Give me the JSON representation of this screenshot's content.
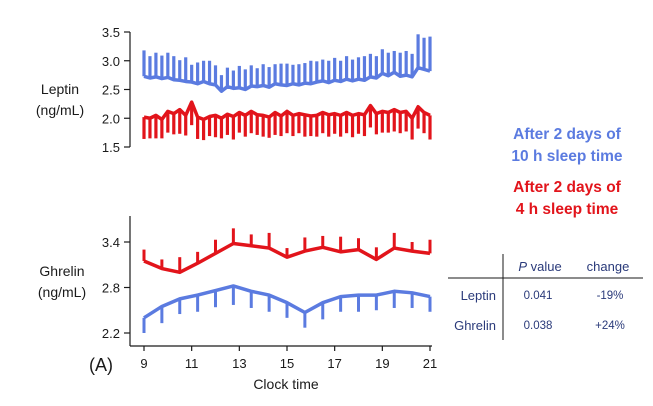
{
  "colors": {
    "blue": "#5B7BE0",
    "red": "#E2141B",
    "ink": "#1a1a1a",
    "tableInk": "#2a3a7a"
  },
  "figure_label": "(A)",
  "chart_data": [
    {
      "type": "line",
      "name": "leptin",
      "ylabel": [
        "Leptin",
        "(ng/mL)"
      ],
      "ylim": [
        1.5,
        3.5
      ],
      "yticks": [
        "3.5",
        "3.0",
        "2.5",
        "2.0",
        "1.5"
      ],
      "ytickValues": [
        3.5,
        3.0,
        2.5,
        2.0,
        1.5
      ],
      "errorDirection": "up/down",
      "series": [
        {
          "name": "After 2 days of 10 h sleep time",
          "color": "blue",
          "x": [
            9.0,
            9.25,
            9.5,
            9.75,
            10.0,
            10.25,
            10.5,
            10.75,
            11.0,
            11.25,
            11.5,
            11.75,
            12.0,
            12.25,
            12.5,
            12.75,
            13.0,
            13.25,
            13.5,
            13.75,
            14.0,
            14.25,
            14.5,
            14.75,
            15.0,
            15.25,
            15.5,
            15.75,
            16.0,
            16.25,
            16.5,
            16.75,
            17.0,
            17.25,
            17.5,
            17.75,
            18.0,
            18.25,
            18.5,
            18.75,
            19.0,
            19.25,
            19.5,
            19.75,
            20.0,
            20.25,
            20.5,
            20.75,
            21.0
          ],
          "values": [
            2.73,
            2.7,
            2.72,
            2.69,
            2.71,
            2.67,
            2.66,
            2.64,
            2.63,
            2.6,
            2.64,
            2.6,
            2.58,
            2.47,
            2.55,
            2.52,
            2.53,
            2.5,
            2.56,
            2.55,
            2.57,
            2.54,
            2.6,
            2.58,
            2.57,
            2.6,
            2.58,
            2.61,
            2.6,
            2.63,
            2.65,
            2.62,
            2.66,
            2.64,
            2.68,
            2.65,
            2.68,
            2.66,
            2.72,
            2.7,
            2.78,
            2.74,
            2.8,
            2.73,
            2.75,
            2.72,
            2.88,
            2.85,
            2.82
          ],
          "errors": [
            0.45,
            0.38,
            0.42,
            0.4,
            0.43,
            0.41,
            0.35,
            0.42,
            0.3,
            0.37,
            0.36,
            0.4,
            0.34,
            0.28,
            0.33,
            0.31,
            0.38,
            0.35,
            0.36,
            0.32,
            0.37,
            0.35,
            0.34,
            0.37,
            0.38,
            0.33,
            0.36,
            0.35,
            0.4,
            0.36,
            0.37,
            0.38,
            0.39,
            0.36,
            0.4,
            0.37,
            0.38,
            0.42,
            0.4,
            0.38,
            0.42,
            0.4,
            0.37,
            0.41,
            0.42,
            0.4,
            0.58,
            0.55,
            0.6
          ]
        },
        {
          "name": "After 2 days of 4 h sleep time",
          "color": "red",
          "x": [
            9.0,
            9.25,
            9.5,
            9.75,
            10.0,
            10.25,
            10.5,
            10.75,
            11.0,
            11.25,
            11.5,
            11.75,
            12.0,
            12.25,
            12.5,
            12.75,
            13.0,
            13.25,
            13.5,
            13.75,
            14.0,
            14.25,
            14.5,
            14.75,
            15.0,
            15.25,
            15.5,
            15.75,
            16.0,
            16.25,
            16.5,
            16.75,
            17.0,
            17.25,
            17.5,
            17.75,
            18.0,
            18.25,
            18.5,
            18.75,
            19.0,
            19.25,
            19.5,
            19.75,
            20.0,
            20.25,
            20.5,
            20.75,
            21.0
          ],
          "values": [
            2.02,
            2.0,
            2.05,
            1.98,
            2.12,
            2.08,
            2.15,
            2.05,
            2.28,
            2.02,
            1.98,
            2.03,
            2.05,
            2.0,
            2.07,
            2.03,
            2.1,
            2.05,
            2.12,
            2.06,
            2.05,
            2.02,
            2.1,
            2.04,
            2.12,
            2.05,
            2.08,
            2.06,
            2.04,
            2.05,
            2.1,
            2.06,
            2.08,
            2.05,
            2.1,
            2.05,
            2.08,
            2.06,
            2.22,
            2.08,
            2.12,
            2.1,
            2.15,
            2.1,
            2.12,
            2.0,
            2.2,
            2.1,
            2.05
          ],
          "errors": [
            0.38,
            0.35,
            0.4,
            0.33,
            0.37,
            0.36,
            0.42,
            0.35,
            0.4,
            0.38,
            0.36,
            0.34,
            0.38,
            0.35,
            0.36,
            0.4,
            0.35,
            0.37,
            0.38,
            0.35,
            0.37,
            0.36,
            0.39,
            0.35,
            0.38,
            0.36,
            0.34,
            0.38,
            0.35,
            0.37,
            0.36,
            0.38,
            0.35,
            0.37,
            0.36,
            0.38,
            0.35,
            0.37,
            0.38,
            0.36,
            0.37,
            0.35,
            0.38,
            0.36,
            0.35,
            0.37,
            0.38,
            0.36,
            0.42
          ]
        }
      ]
    },
    {
      "type": "line",
      "name": "ghrelin",
      "ylabel": [
        "Ghrelin",
        "(ng/mL)"
      ],
      "ylim": [
        2.2,
        3.7
      ],
      "yticks": [
        "3.4",
        "2.8",
        "2.2"
      ],
      "ytickValues": [
        3.4,
        2.8,
        2.2
      ],
      "xlabel": "Clock time",
      "xticks": [
        "9",
        "11",
        "13",
        "15",
        "17",
        "19",
        "21"
      ],
      "xtickValues": [
        9,
        11,
        13,
        15,
        17,
        19,
        21
      ],
      "xlim": [
        9,
        21
      ],
      "series": [
        {
          "name": "After 2 days of 10 h sleep time",
          "color": "blue",
          "errorDirection": "down",
          "x": [
            9.0,
            9.75,
            10.5,
            11.25,
            12.0,
            12.75,
            13.5,
            14.25,
            15.0,
            15.75,
            16.5,
            17.25,
            18.0,
            18.75,
            19.5,
            20.25,
            21.0
          ],
          "values": [
            2.4,
            2.55,
            2.65,
            2.7,
            2.76,
            2.82,
            2.75,
            2.7,
            2.6,
            2.47,
            2.6,
            2.68,
            2.7,
            2.7,
            2.75,
            2.73,
            2.68
          ],
          "errors": [
            0.2,
            0.22,
            0.2,
            0.22,
            0.22,
            0.25,
            0.22,
            0.22,
            0.2,
            0.2,
            0.22,
            0.2,
            0.22,
            0.2,
            0.22,
            0.2,
            0.2
          ]
        },
        {
          "name": "After 2 days of 4 h sleep time",
          "color": "red",
          "errorDirection": "up",
          "x": [
            9.0,
            9.75,
            10.5,
            11.25,
            12.0,
            12.75,
            13.5,
            14.25,
            15.0,
            15.75,
            16.5,
            17.25,
            18.0,
            18.75,
            19.5,
            20.25,
            21.0
          ],
          "values": [
            3.15,
            3.05,
            3.0,
            3.12,
            3.25,
            3.38,
            3.35,
            3.32,
            3.2,
            3.28,
            3.33,
            3.27,
            3.3,
            3.17,
            3.32,
            3.28,
            3.25
          ],
          "errors": [
            0.15,
            0.12,
            0.2,
            0.15,
            0.18,
            0.2,
            0.15,
            0.2,
            0.12,
            0.18,
            0.15,
            0.2,
            0.15,
            0.16,
            0.2,
            0.12,
            0.18
          ]
        }
      ]
    }
  ],
  "legend": [
    {
      "line1": "After 2 days of",
      "line2": "10 h sleep time",
      "color": "blue"
    },
    {
      "line1": "After 2 days of",
      "line2": "4 h sleep time",
      "color": "red"
    }
  ],
  "stats_table": {
    "headers": {
      "p_label": "P",
      "p_suffix": " value",
      "change": "change"
    },
    "rows": [
      {
        "label": "Leptin",
        "p": "0.041",
        "change": "-19%"
      },
      {
        "label": "Ghrelin",
        "p": "0.038",
        "change": "+24%"
      }
    ]
  }
}
